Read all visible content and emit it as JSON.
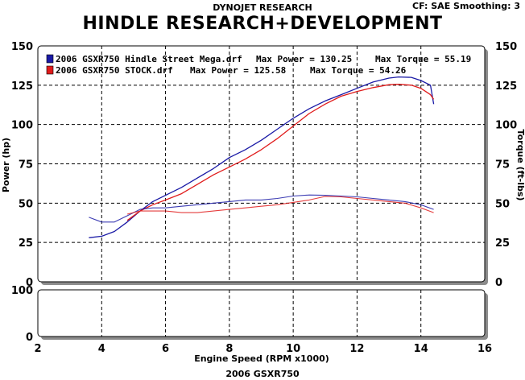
{
  "header": {
    "brand": "DYNOJET RESEARCH",
    "correction": "CF: SAE  Smoothing: 3",
    "title": "HINDLE RESEARCH+DEVELOPMENT",
    "footer": "2006 GSXR750"
  },
  "chart_data": {
    "type": "line",
    "xlabel": "Engine Speed (RPM x1000)",
    "ylabel_left": "Power (hp)",
    "ylabel_right": "Torque (ft-lbs)",
    "xlim": [
      2,
      16
    ],
    "ylim": [
      0,
      150
    ],
    "x_ticks": [
      2,
      4,
      6,
      8,
      10,
      12,
      14,
      16
    ],
    "y_ticks": [
      0,
      25,
      50,
      75,
      100,
      125,
      150
    ],
    "grid": true,
    "legend_position": "top-left",
    "legend": [
      {
        "name": "2006 GSXR750 Hindle Street Mega.drf",
        "power_label": "Max Power = 130.25",
        "torque_label": "Max Torque = 55.19",
        "color": "#1a1aa6"
      },
      {
        "name": "2006 GSXR750 STOCK.drf",
        "power_label": "Max Power = 125.58",
        "torque_label": "Max Torque = 54.26",
        "color": "#e01b1b"
      }
    ],
    "series": [
      {
        "name": "2006 GSXR750 Hindle Street Mega.drf",
        "measure": "power",
        "color": "#1a1aa6",
        "points": [
          [
            3.6,
            28
          ],
          [
            4.0,
            29
          ],
          [
            4.4,
            32
          ],
          [
            4.8,
            38
          ],
          [
            5.2,
            45
          ],
          [
            5.6,
            51
          ],
          [
            6.0,
            55
          ],
          [
            6.5,
            60
          ],
          [
            7.0,
            66
          ],
          [
            7.5,
            72
          ],
          [
            8.0,
            79
          ],
          [
            8.5,
            84
          ],
          [
            9.0,
            90
          ],
          [
            9.5,
            97
          ],
          [
            10.0,
            104
          ],
          [
            10.5,
            110
          ],
          [
            11.0,
            115
          ],
          [
            11.5,
            119
          ],
          [
            12.0,
            123
          ],
          [
            12.5,
            127
          ],
          [
            13.0,
            129.5
          ],
          [
            13.3,
            130.25
          ],
          [
            13.7,
            130
          ],
          [
            14.0,
            128
          ],
          [
            14.3,
            125
          ],
          [
            14.4,
            113
          ]
        ]
      },
      {
        "name": "2006 GSXR750 STOCK.drf",
        "measure": "power",
        "color": "#e01b1b",
        "points": [
          [
            4.8,
            39
          ],
          [
            5.2,
            45
          ],
          [
            5.6,
            49
          ],
          [
            6.0,
            52
          ],
          [
            6.5,
            56
          ],
          [
            7.0,
            62
          ],
          [
            7.5,
            68
          ],
          [
            8.0,
            73
          ],
          [
            8.5,
            78
          ],
          [
            9.0,
            84
          ],
          [
            9.5,
            91
          ],
          [
            10.0,
            99
          ],
          [
            10.5,
            107
          ],
          [
            11.0,
            113
          ],
          [
            11.5,
            118
          ],
          [
            12.0,
            121
          ],
          [
            12.5,
            123.5
          ],
          [
            13.0,
            125.3
          ],
          [
            13.3,
            125.58
          ],
          [
            13.7,
            125
          ],
          [
            14.0,
            123
          ],
          [
            14.3,
            119
          ],
          [
            14.4,
            116
          ]
        ]
      },
      {
        "name": "2006 GSXR750 Hindle Street Mega.drf",
        "measure": "torque",
        "color": "#1a1aa6",
        "points": [
          [
            3.6,
            41
          ],
          [
            4.0,
            38
          ],
          [
            4.4,
            38
          ],
          [
            4.8,
            42
          ],
          [
            5.2,
            46
          ],
          [
            5.6,
            47
          ],
          [
            6.0,
            47
          ],
          [
            6.5,
            48
          ],
          [
            7.0,
            49
          ],
          [
            7.5,
            50
          ],
          [
            8.0,
            51
          ],
          [
            8.5,
            52
          ],
          [
            9.0,
            52
          ],
          [
            9.5,
            53
          ],
          [
            10.0,
            54.5
          ],
          [
            10.5,
            55.19
          ],
          [
            11.0,
            55
          ],
          [
            11.5,
            54.5
          ],
          [
            12.0,
            54
          ],
          [
            12.5,
            53
          ],
          [
            13.0,
            52
          ],
          [
            13.5,
            51
          ],
          [
            14.0,
            49
          ],
          [
            14.4,
            46
          ]
        ]
      },
      {
        "name": "2006 GSXR750 STOCK.drf",
        "measure": "torque",
        "color": "#e01b1b",
        "points": [
          [
            4.8,
            43
          ],
          [
            5.2,
            45
          ],
          [
            5.6,
            45
          ],
          [
            6.0,
            45
          ],
          [
            6.5,
            44
          ],
          [
            7.0,
            44
          ],
          [
            7.5,
            45
          ],
          [
            8.0,
            46
          ],
          [
            8.5,
            47
          ],
          [
            9.0,
            48
          ],
          [
            9.5,
            49
          ],
          [
            10.0,
            50.5
          ],
          [
            10.5,
            52
          ],
          [
            11.0,
            54.26
          ],
          [
            11.5,
            54
          ],
          [
            12.0,
            53
          ],
          [
            12.5,
            52
          ],
          [
            13.0,
            51
          ],
          [
            13.5,
            50
          ],
          [
            14.0,
            47
          ],
          [
            14.4,
            44
          ]
        ]
      }
    ],
    "subchart": {
      "ylim": [
        0,
        100
      ],
      "y_ticks": [
        0,
        100
      ]
    }
  }
}
